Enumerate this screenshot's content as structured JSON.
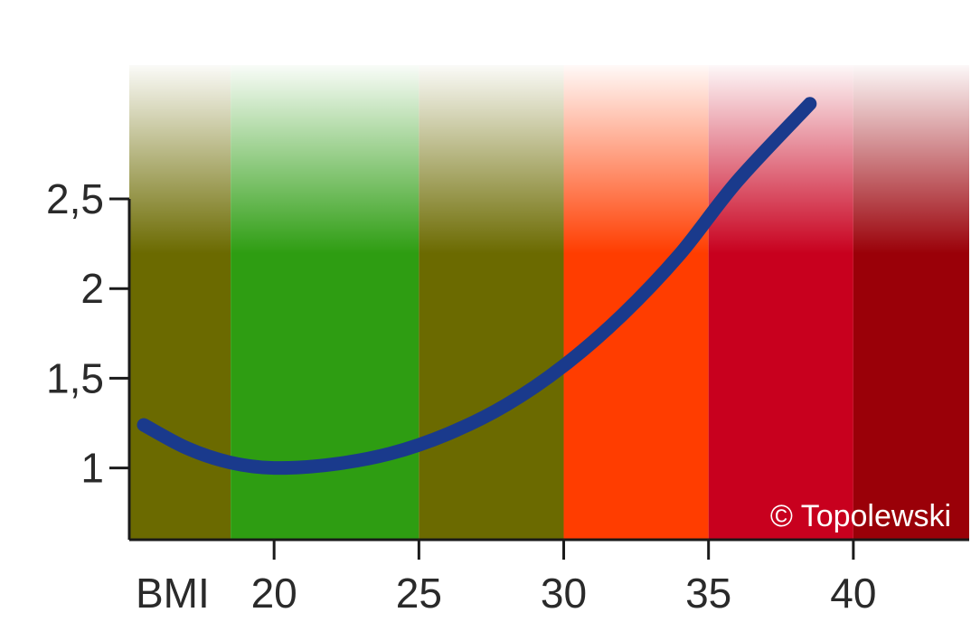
{
  "chart_data": {
    "type": "line",
    "title": "",
    "xlabel": "BMI",
    "ylabel": "",
    "xlim": [
      15,
      44
    ],
    "ylim": [
      0.6,
      2.5
    ],
    "x_ticks": [
      20,
      25,
      30,
      35,
      40
    ],
    "y_ticks": [
      1,
      1.5,
      2,
      2.5
    ],
    "y_tick_labels": [
      "1",
      "1,5",
      "2",
      "2,5"
    ],
    "grid": false,
    "bands": [
      {
        "from": 15,
        "to": 18.5,
        "color": "#6b6a00"
      },
      {
        "from": 18.5,
        "to": 25,
        "color": "#2e9d12"
      },
      {
        "from": 25,
        "to": 30,
        "color": "#6b6a00"
      },
      {
        "from": 30,
        "to": 35,
        "color": "#ff3d00"
      },
      {
        "from": 35,
        "to": 40,
        "color": "#c8001e"
      },
      {
        "from": 40,
        "to": 44,
        "color": "#9a0008"
      }
    ],
    "series": [
      {
        "color": "#1a3a8c",
        "x": [
          15.5,
          17,
          18.5,
          20,
          22,
          24,
          26,
          28,
          30,
          32,
          34,
          36,
          38.5
        ],
        "y": [
          1.24,
          1.11,
          1.03,
          1.0,
          1.02,
          1.08,
          1.19,
          1.35,
          1.57,
          1.85,
          2.19,
          2.6,
          3.03
        ]
      }
    ],
    "annotations": [
      {
        "text": "© Topolewski",
        "position": "bottom-right"
      }
    ]
  }
}
